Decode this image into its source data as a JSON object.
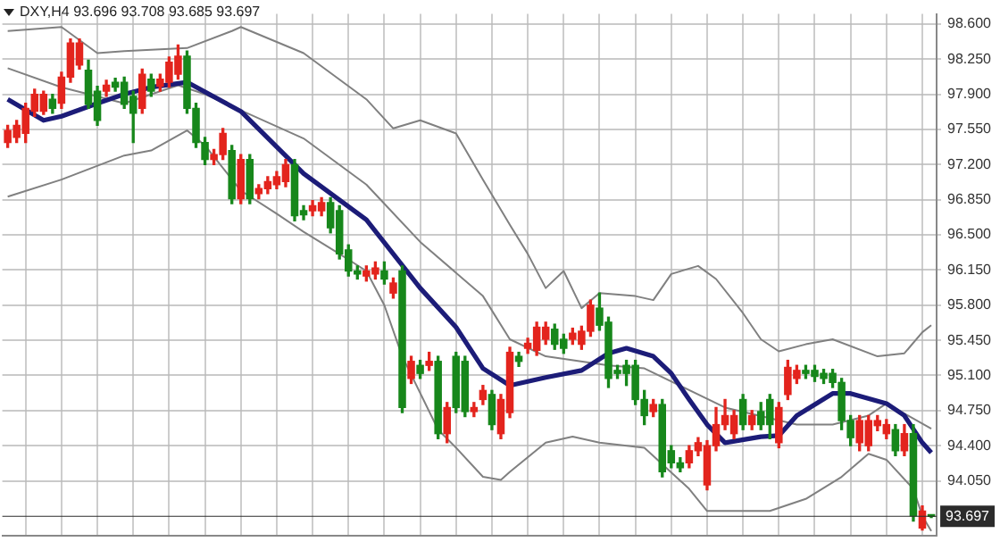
{
  "chart_data": {
    "type": "candlestick",
    "title": "DXY,H4 93.696 93.708 93.685 93.697",
    "categories": [
      null,
      null,
      null,
      null,
      null,
      null,
      null,
      null,
      null,
      null,
      null,
      null,
      null,
      null,
      null,
      null,
      null,
      null,
      null,
      null,
      null,
      null,
      null,
      null,
      null,
      null,
      null,
      null,
      null,
      null,
      null,
      null,
      null,
      null,
      null,
      null,
      null,
      null,
      null,
      null,
      null,
      null,
      null,
      null,
      null,
      null,
      null,
      null,
      null,
      null,
      null,
      null,
      null,
      null,
      null,
      null,
      null,
      null,
      null,
      null,
      null,
      null,
      null,
      null,
      null,
      null,
      null,
      null,
      null,
      null,
      null,
      null,
      null,
      null,
      null,
      null,
      null,
      null,
      null,
      null,
      null,
      null,
      null,
      null,
      null,
      null,
      null,
      null,
      null,
      null,
      null,
      null,
      null,
      null,
      null,
      null,
      null,
      null,
      null,
      null,
      null,
      null,
      null,
      null
    ],
    "ohlc": [
      [
        97.42,
        97.59,
        97.37,
        97.54
      ],
      [
        97.47,
        97.64,
        97.42,
        97.59
      ],
      [
        97.51,
        97.81,
        97.42,
        97.76
      ],
      [
        97.73,
        97.95,
        97.68,
        97.9
      ],
      [
        97.73,
        97.93,
        97.7,
        97.9
      ],
      [
        97.85,
        97.9,
        97.71,
        97.76
      ],
      [
        97.81,
        98.12,
        97.76,
        98.07
      ],
      [
        98.07,
        98.45,
        98.02,
        98.41
      ],
      [
        98.19,
        98.45,
        98.15,
        98.41
      ],
      [
        98.14,
        98.24,
        97.76,
        97.8
      ],
      [
        97.93,
        97.98,
        97.59,
        97.64
      ],
      [
        97.93,
        98.04,
        97.88,
        97.99
      ],
      [
        98.02,
        98.06,
        97.93,
        97.97
      ],
      [
        98.02,
        98.07,
        97.76,
        97.8
      ],
      [
        97.88,
        97.93,
        97.42,
        97.71
      ],
      [
        97.76,
        98.15,
        97.71,
        98.1
      ],
      [
        98.05,
        98.1,
        97.88,
        97.93
      ],
      [
        97.98,
        98.1,
        97.93,
        98.05
      ],
      [
        98.02,
        98.27,
        97.97,
        98.22
      ],
      [
        98.1,
        98.39,
        98.05,
        98.28
      ],
      [
        98.28,
        98.33,
        97.71,
        97.76
      ],
      [
        97.76,
        97.81,
        97.37,
        97.42
      ],
      [
        97.42,
        97.47,
        97.2,
        97.25
      ],
      [
        97.25,
        97.35,
        97.2,
        97.3
      ],
      [
        97.3,
        97.56,
        97.25,
        97.51
      ],
      [
        97.34,
        97.39,
        96.81,
        96.86
      ],
      [
        96.86,
        97.3,
        96.81,
        97.25
      ],
      [
        97.25,
        97.3,
        96.81,
        96.86
      ],
      [
        96.91,
        97.0,
        96.86,
        96.96
      ],
      [
        96.96,
        97.08,
        96.91,
        97.03
      ],
      [
        97.0,
        97.13,
        96.96,
        97.08
      ],
      [
        97.03,
        97.25,
        96.98,
        97.2
      ],
      [
        97.2,
        97.25,
        96.64,
        96.69
      ],
      [
        96.74,
        96.79,
        96.65,
        96.7
      ],
      [
        96.74,
        96.84,
        96.69,
        96.79
      ],
      [
        96.74,
        96.87,
        96.69,
        96.82
      ],
      [
        96.82,
        96.87,
        96.52,
        96.57
      ],
      [
        96.74,
        96.79,
        96.26,
        96.31
      ],
      [
        96.35,
        96.4,
        96.09,
        96.14
      ],
      [
        96.14,
        96.19,
        96.06,
        96.11
      ],
      [
        96.09,
        96.19,
        96.04,
        96.14
      ],
      [
        96.11,
        96.23,
        96.06,
        96.17
      ],
      [
        96.14,
        96.23,
        96.01,
        96.06
      ],
      [
        95.92,
        96.07,
        95.87,
        96.02
      ],
      [
        96.14,
        96.19,
        94.73,
        94.78
      ],
      [
        95.07,
        95.29,
        95.02,
        95.24
      ],
      [
        95.2,
        95.25,
        95.07,
        95.12
      ],
      [
        95.2,
        95.33,
        95.15,
        95.24
      ],
      [
        95.24,
        95.29,
        94.47,
        94.52
      ],
      [
        94.52,
        94.83,
        94.43,
        94.78
      ],
      [
        95.29,
        95.33,
        94.73,
        94.78
      ],
      [
        95.24,
        95.29,
        94.69,
        94.74
      ],
      [
        94.74,
        94.83,
        94.69,
        94.78
      ],
      [
        94.86,
        95.0,
        94.81,
        94.95
      ],
      [
        94.91,
        94.95,
        94.56,
        94.61
      ],
      [
        94.52,
        94.91,
        94.47,
        94.86
      ],
      [
        94.73,
        95.38,
        94.68,
        95.33
      ],
      [
        95.29,
        95.33,
        95.19,
        95.24
      ],
      [
        95.37,
        95.47,
        95.32,
        95.42
      ],
      [
        95.35,
        95.63,
        95.3,
        95.58
      ],
      [
        95.46,
        95.63,
        95.41,
        95.58
      ],
      [
        95.56,
        95.61,
        95.36,
        95.41
      ],
      [
        95.46,
        95.51,
        95.32,
        95.37
      ],
      [
        95.46,
        95.57,
        95.41,
        95.52
      ],
      [
        95.41,
        95.59,
        95.36,
        95.54
      ],
      [
        95.54,
        95.85,
        95.49,
        95.8
      ],
      [
        95.77,
        95.92,
        95.55,
        95.6
      ],
      [
        95.63,
        95.68,
        94.98,
        95.07
      ],
      [
        95.15,
        95.2,
        95.07,
        95.12
      ],
      [
        95.2,
        95.25,
        95.0,
        95.12
      ],
      [
        95.2,
        95.25,
        94.81,
        94.86
      ],
      [
        94.86,
        94.95,
        94.61,
        94.7
      ],
      [
        94.74,
        94.86,
        94.69,
        94.81
      ],
      [
        94.81,
        94.86,
        94.09,
        94.14
      ],
      [
        94.35,
        94.4,
        94.18,
        94.23
      ],
      [
        94.23,
        94.28,
        94.14,
        94.18
      ],
      [
        94.23,
        94.4,
        94.18,
        94.35
      ],
      [
        94.35,
        94.48,
        94.3,
        94.43
      ],
      [
        94.01,
        94.45,
        93.96,
        94.4
      ],
      [
        94.4,
        94.78,
        94.35,
        94.61
      ],
      [
        94.61,
        94.86,
        94.56,
        94.7
      ],
      [
        94.52,
        94.75,
        94.47,
        94.7
      ],
      [
        94.86,
        94.91,
        94.56,
        94.61
      ],
      [
        94.61,
        94.75,
        94.56,
        94.7
      ],
      [
        94.74,
        94.83,
        94.56,
        94.61
      ],
      [
        94.86,
        94.91,
        94.47,
        94.61
      ],
      [
        94.43,
        94.83,
        94.38,
        94.78
      ],
      [
        94.91,
        95.25,
        94.86,
        95.18
      ],
      [
        95.07,
        95.2,
        95.02,
        95.15
      ],
      [
        95.15,
        95.2,
        95.07,
        95.12
      ],
      [
        95.15,
        95.2,
        95.04,
        95.09
      ],
      [
        95.12,
        95.16,
        95.02,
        95.07
      ],
      [
        95.12,
        95.16,
        94.98,
        95.03
      ],
      [
        95.03,
        95.07,
        94.56,
        94.65
      ],
      [
        94.65,
        94.7,
        94.4,
        94.48
      ],
      [
        94.43,
        94.7,
        94.35,
        94.65
      ],
      [
        94.4,
        94.7,
        94.35,
        94.65
      ],
      [
        94.6,
        94.7,
        94.55,
        94.65
      ],
      [
        94.52,
        94.66,
        94.47,
        94.61
      ],
      [
        94.56,
        94.61,
        94.3,
        94.35
      ],
      [
        94.35,
        94.61,
        94.3,
        94.52
      ],
      [
        94.52,
        94.61,
        93.65,
        93.7
      ],
      [
        93.58,
        93.8,
        93.56,
        93.75
      ],
      [
        93.696,
        93.708,
        93.685,
        93.697
      ]
    ],
    "colors": [
      "#e3241d",
      "#e3241d",
      "#e3241d",
      "#e3241d",
      "#e3241d",
      "#17871b",
      "#e3241d",
      "#e3241d",
      "#e3241d",
      "#17871b",
      "#17871b",
      "#e3241d",
      "#17871b",
      "#17871b",
      "#17871b",
      "#e3241d",
      "#17871b",
      "#e3241d",
      "#e3241d",
      "#e3241d",
      "#17871b",
      "#17871b",
      "#17871b",
      "#e3241d",
      "#e3241d",
      "#17871b",
      "#e3241d",
      "#17871b",
      "#e3241d",
      "#e3241d",
      "#e3241d",
      "#e3241d",
      "#17871b",
      "#17871b",
      "#e3241d",
      "#e3241d",
      "#17871b",
      "#17871b",
      "#17871b",
      "#17871b",
      "#e3241d",
      "#e3241d",
      "#17871b",
      "#e3241d",
      "#17871b",
      "#e3241d",
      "#17871b",
      "#e3241d",
      "#17871b",
      "#e3241d",
      "#17871b",
      "#17871b",
      "#e3241d",
      "#e3241d",
      "#17871b",
      "#e3241d",
      "#e3241d",
      "#17871b",
      "#e3241d",
      "#e3241d",
      "#e3241d",
      "#17871b",
      "#17871b",
      "#e3241d",
      "#e3241d",
      "#e3241d",
      "#17871b",
      "#17871b",
      "#17871b",
      "#17871b",
      "#17871b",
      "#17871b",
      "#e3241d",
      "#17871b",
      "#17871b",
      "#17871b",
      "#e3241d",
      "#e3241d",
      "#e3241d",
      "#e3241d",
      "#e3241d",
      "#e3241d",
      "#17871b",
      "#e3241d",
      "#17871b",
      "#17871b",
      "#e3241d",
      "#e3241d",
      "#e3241d",
      "#17871b",
      "#17871b",
      "#17871b",
      "#17871b",
      "#17871b",
      "#17871b",
      "#e3241d",
      "#e3241d",
      "#e3241d",
      "#e3241d",
      "#17871b",
      "#e3241d",
      "#17871b",
      "#e3241d",
      "#17871b"
    ],
    "series": [
      {
        "type": "line",
        "color": "#1c1c78",
        "values": [
          97.85,
          null,
          null,
          null,
          97.64,
          null,
          97.68,
          null,
          null,
          null,
          97.81,
          null,
          null,
          97.9,
          null,
          null,
          97.97,
          null,
          null,
          null,
          98.02,
          null,
          null,
          null,
          null,
          null,
          97.73,
          null,
          null,
          null,
          null,
          null,
          null,
          97.11,
          null,
          null,
          null,
          null,
          null,
          null,
          96.65,
          null,
          null,
          null,
          null,
          null,
          95.97,
          null,
          null,
          null,
          95.58,
          null,
          null,
          95.17,
          null,
          null,
          95.0,
          null,
          null,
          null,
          95.08,
          null,
          null,
          null,
          95.15,
          null,
          null,
          95.32,
          null,
          95.37,
          null,
          null,
          95.29,
          null,
          95.12,
          null,
          94.86,
          null,
          94.61,
          null,
          94.43,
          null,
          null,
          null,
          94.49,
          null,
          94.5,
          null,
          94.7,
          null,
          null,
          null,
          94.92,
          null,
          94.92,
          null,
          null,
          null,
          94.82,
          null,
          94.7,
          null,
          94.43,
          94.33
        ]
      },
      {
        "type": "line",
        "color": "#808080",
        "values": [
          98.53,
          null,
          null,
          null,
          null,
          null,
          98.57,
          null,
          null,
          null,
          98.31,
          null,
          null,
          98.33,
          null,
          null,
          null,
          null,
          null,
          null,
          98.36,
          null,
          null,
          null,
          null,
          98.53,
          98.57,
          null,
          null,
          null,
          null,
          null,
          null,
          98.31,
          null,
          null,
          null,
          null,
          null,
          null,
          97.85,
          null,
          null,
          97.56,
          null,
          null,
          97.64,
          null,
          null,
          null,
          97.51,
          null,
          null,
          97.05,
          null,
          null,
          96.6,
          null,
          96.31,
          null,
          95.97,
          null,
          96.14,
          null,
          95.77,
          null,
          95.92,
          null,
          null,
          null,
          95.89,
          null,
          95.85,
          null,
          96.11,
          null,
          null,
          96.19,
          null,
          96.06,
          null,
          null,
          95.72,
          null,
          95.46,
          null,
          95.34,
          null,
          null,
          95.41,
          null,
          null,
          95.46,
          null,
          null,
          null,
          null,
          95.29,
          null,
          null,
          95.32,
          null,
          95.53,
          95.6
        ]
      },
      {
        "type": "line",
        "color": "#808080",
        "values": [
          98.16,
          null,
          null,
          null,
          null,
          null,
          97.97,
          null,
          null,
          null,
          null,
          null,
          null,
          97.81,
          null,
          null,
          null,
          null,
          null,
          97.99,
          null,
          null,
          97.9,
          null,
          null,
          null,
          null,
          null,
          null,
          null,
          null,
          null,
          null,
          97.46,
          null,
          null,
          null,
          null,
          null,
          null,
          97.0,
          null,
          null,
          null,
          null,
          null,
          96.43,
          null,
          null,
          null,
          null,
          null,
          null,
          95.89,
          null,
          null,
          95.46,
          null,
          null,
          null,
          95.29,
          null,
          null,
          null,
          null,
          null,
          null,
          95.2,
          null,
          null,
          null,
          95.17,
          null,
          null,
          null,
          null,
          null,
          null,
          null,
          null,
          94.78,
          null,
          null,
          null,
          null,
          null,
          null,
          null,
          94.61,
          null,
          null,
          null,
          94.61,
          null,
          null,
          null,
          94.7,
          null,
          94.82,
          null,
          null,
          null,
          null,
          94.57
        ]
      },
      {
        "type": "line",
        "color": "#808080",
        "values": [
          96.88,
          null,
          null,
          null,
          null,
          null,
          97.05,
          null,
          null,
          null,
          null,
          null,
          null,
          97.29,
          null,
          null,
          97.34,
          null,
          null,
          null,
          97.54,
          null,
          97.39,
          null,
          null,
          null,
          96.94,
          null,
          null,
          null,
          96.71,
          null,
          null,
          96.53,
          null,
          null,
          null,
          96.31,
          null,
          null,
          96.14,
          null,
          95.8,
          null,
          95.29,
          null,
          null,
          null,
          94.56,
          null,
          94.38,
          null,
          null,
          94.09,
          null,
          94.06,
          94.14,
          null,
          null,
          null,
          94.43,
          null,
          null,
          94.49,
          null,
          null,
          94.43,
          null,
          null,
          null,
          null,
          94.38,
          null,
          null,
          null,
          null,
          93.97,
          null,
          93.75,
          null,
          null,
          null,
          null,
          null,
          null,
          93.75,
          null,
          null,
          null,
          93.87,
          null,
          null,
          null,
          94.09,
          null,
          null,
          94.32,
          null,
          94.26,
          null,
          null,
          93.97,
          93.7,
          93.55
        ]
      }
    ],
    "ylim": [
      93.5,
      98.7
    ],
    "yticks": [
      {
        "value": 98.6,
        "label": "98.600"
      },
      {
        "value": 98.25,
        "label": "98.250"
      },
      {
        "value": 97.9,
        "label": "97.900"
      },
      {
        "value": 97.55,
        "label": "97.550"
      },
      {
        "value": 97.2,
        "label": "97.200"
      },
      {
        "value": 96.85,
        "label": "96.850"
      },
      {
        "value": 96.5,
        "label": "96.500"
      },
      {
        "value": 96.15,
        "label": "96.150"
      },
      {
        "value": 95.8,
        "label": "95.800"
      },
      {
        "value": 95.45,
        "label": "95.450"
      },
      {
        "value": 95.1,
        "label": "95.100"
      },
      {
        "value": 94.75,
        "label": "94.750"
      },
      {
        "value": 94.4,
        "label": "94.400"
      },
      {
        "value": 94.05,
        "label": "94.050"
      }
    ],
    "ref_lines": [
      {
        "axis": "y",
        "value": 93.697,
        "label": "93.697",
        "color": "#2b2b2b"
      }
    ],
    "grid": true
  }
}
